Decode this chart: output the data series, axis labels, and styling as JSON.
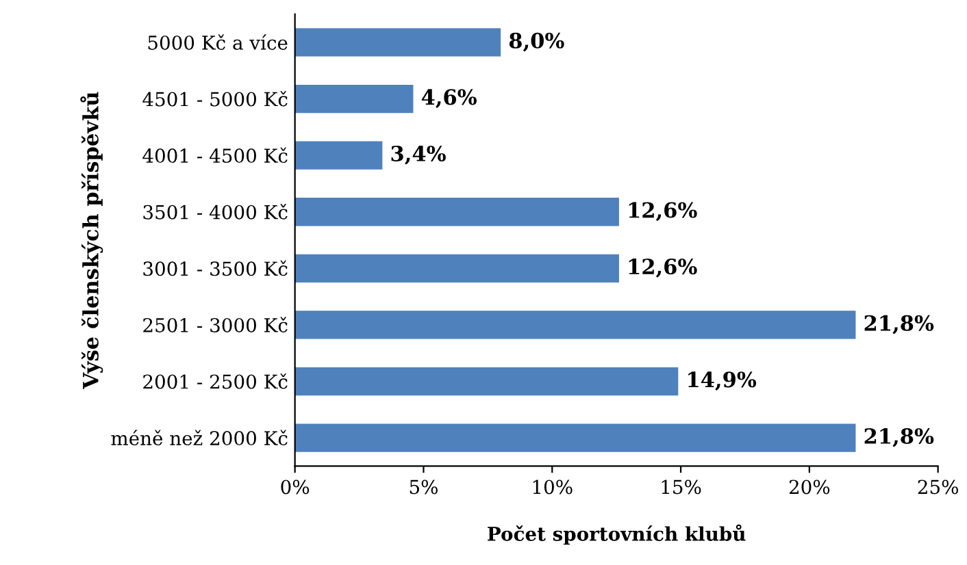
{
  "chart_data": {
    "type": "bar",
    "orientation": "horizontal",
    "xlabel": "Počet sportovních klubů",
    "ylabel": "Výše členských příspěvků",
    "categories": [
      "5000 Kč a více",
      "4501 - 5000 Kč",
      "4001 - 4500 Kč",
      "3501 - 4000 Kč",
      "3001 - 3500 Kč",
      "2501 - 3000 Kč",
      "2001 - 2500 Kč",
      "méně než 2000 Kč"
    ],
    "values": [
      8.0,
      4.6,
      3.4,
      12.6,
      12.6,
      21.8,
      14.9,
      21.8
    ],
    "value_labels": [
      "8,0%",
      "4,6%",
      "3,4%",
      "12,6%",
      "12,6%",
      "21,8%",
      "14,9%",
      "21,8%"
    ],
    "color": "#4f81bd",
    "xlim": [
      0,
      25
    ],
    "xticks": [
      {
        "value": 0,
        "label": "0%"
      },
      {
        "value": 5,
        "label": "5%"
      },
      {
        "value": 10,
        "label": "10%"
      },
      {
        "value": 15,
        "label": "15%"
      },
      {
        "value": 20,
        "label": "20%"
      },
      {
        "value": 25,
        "label": "25%"
      }
    ],
    "grid": false,
    "legend": false
  }
}
